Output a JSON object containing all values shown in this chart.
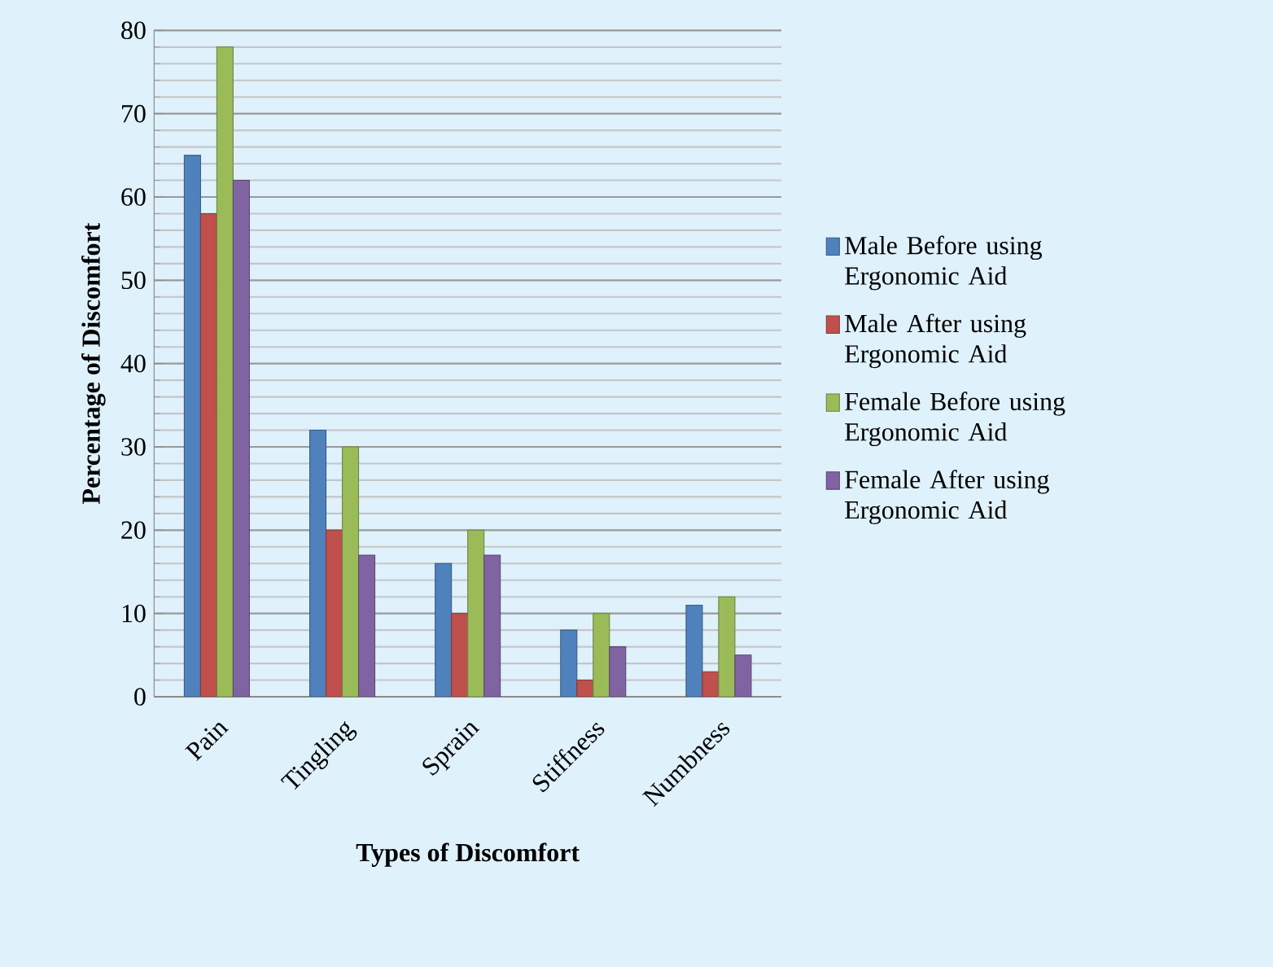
{
  "chart_data": {
    "type": "bar",
    "xlabel": "Types of Discomfort",
    "ylabel": "Percentage of Discomfort",
    "categories": [
      "Pain",
      "Tingling",
      "Sprain",
      "Stiffness",
      "Numbness"
    ],
    "series": [
      {
        "name": "Male Before using Ergonomic Aid",
        "color": "#4f81bd",
        "values": [
          65,
          32,
          16,
          8,
          11
        ]
      },
      {
        "name": "Male After using Ergonomic Aid",
        "color": "#c0504d",
        "values": [
          58,
          20,
          10,
          2,
          3
        ]
      },
      {
        "name": "Female Before using Ergonomic Aid",
        "color": "#9bbb59",
        "values": [
          78,
          30,
          20,
          10,
          12
        ]
      },
      {
        "name": "Female After using Ergonomic Aid",
        "color": "#8064a2",
        "values": [
          62,
          17,
          17,
          6,
          5
        ]
      }
    ],
    "ylim": [
      0,
      80
    ],
    "yticks": [
      0,
      10,
      20,
      30,
      40,
      50,
      60,
      70,
      80
    ],
    "grid": "y",
    "legend": "right"
  }
}
